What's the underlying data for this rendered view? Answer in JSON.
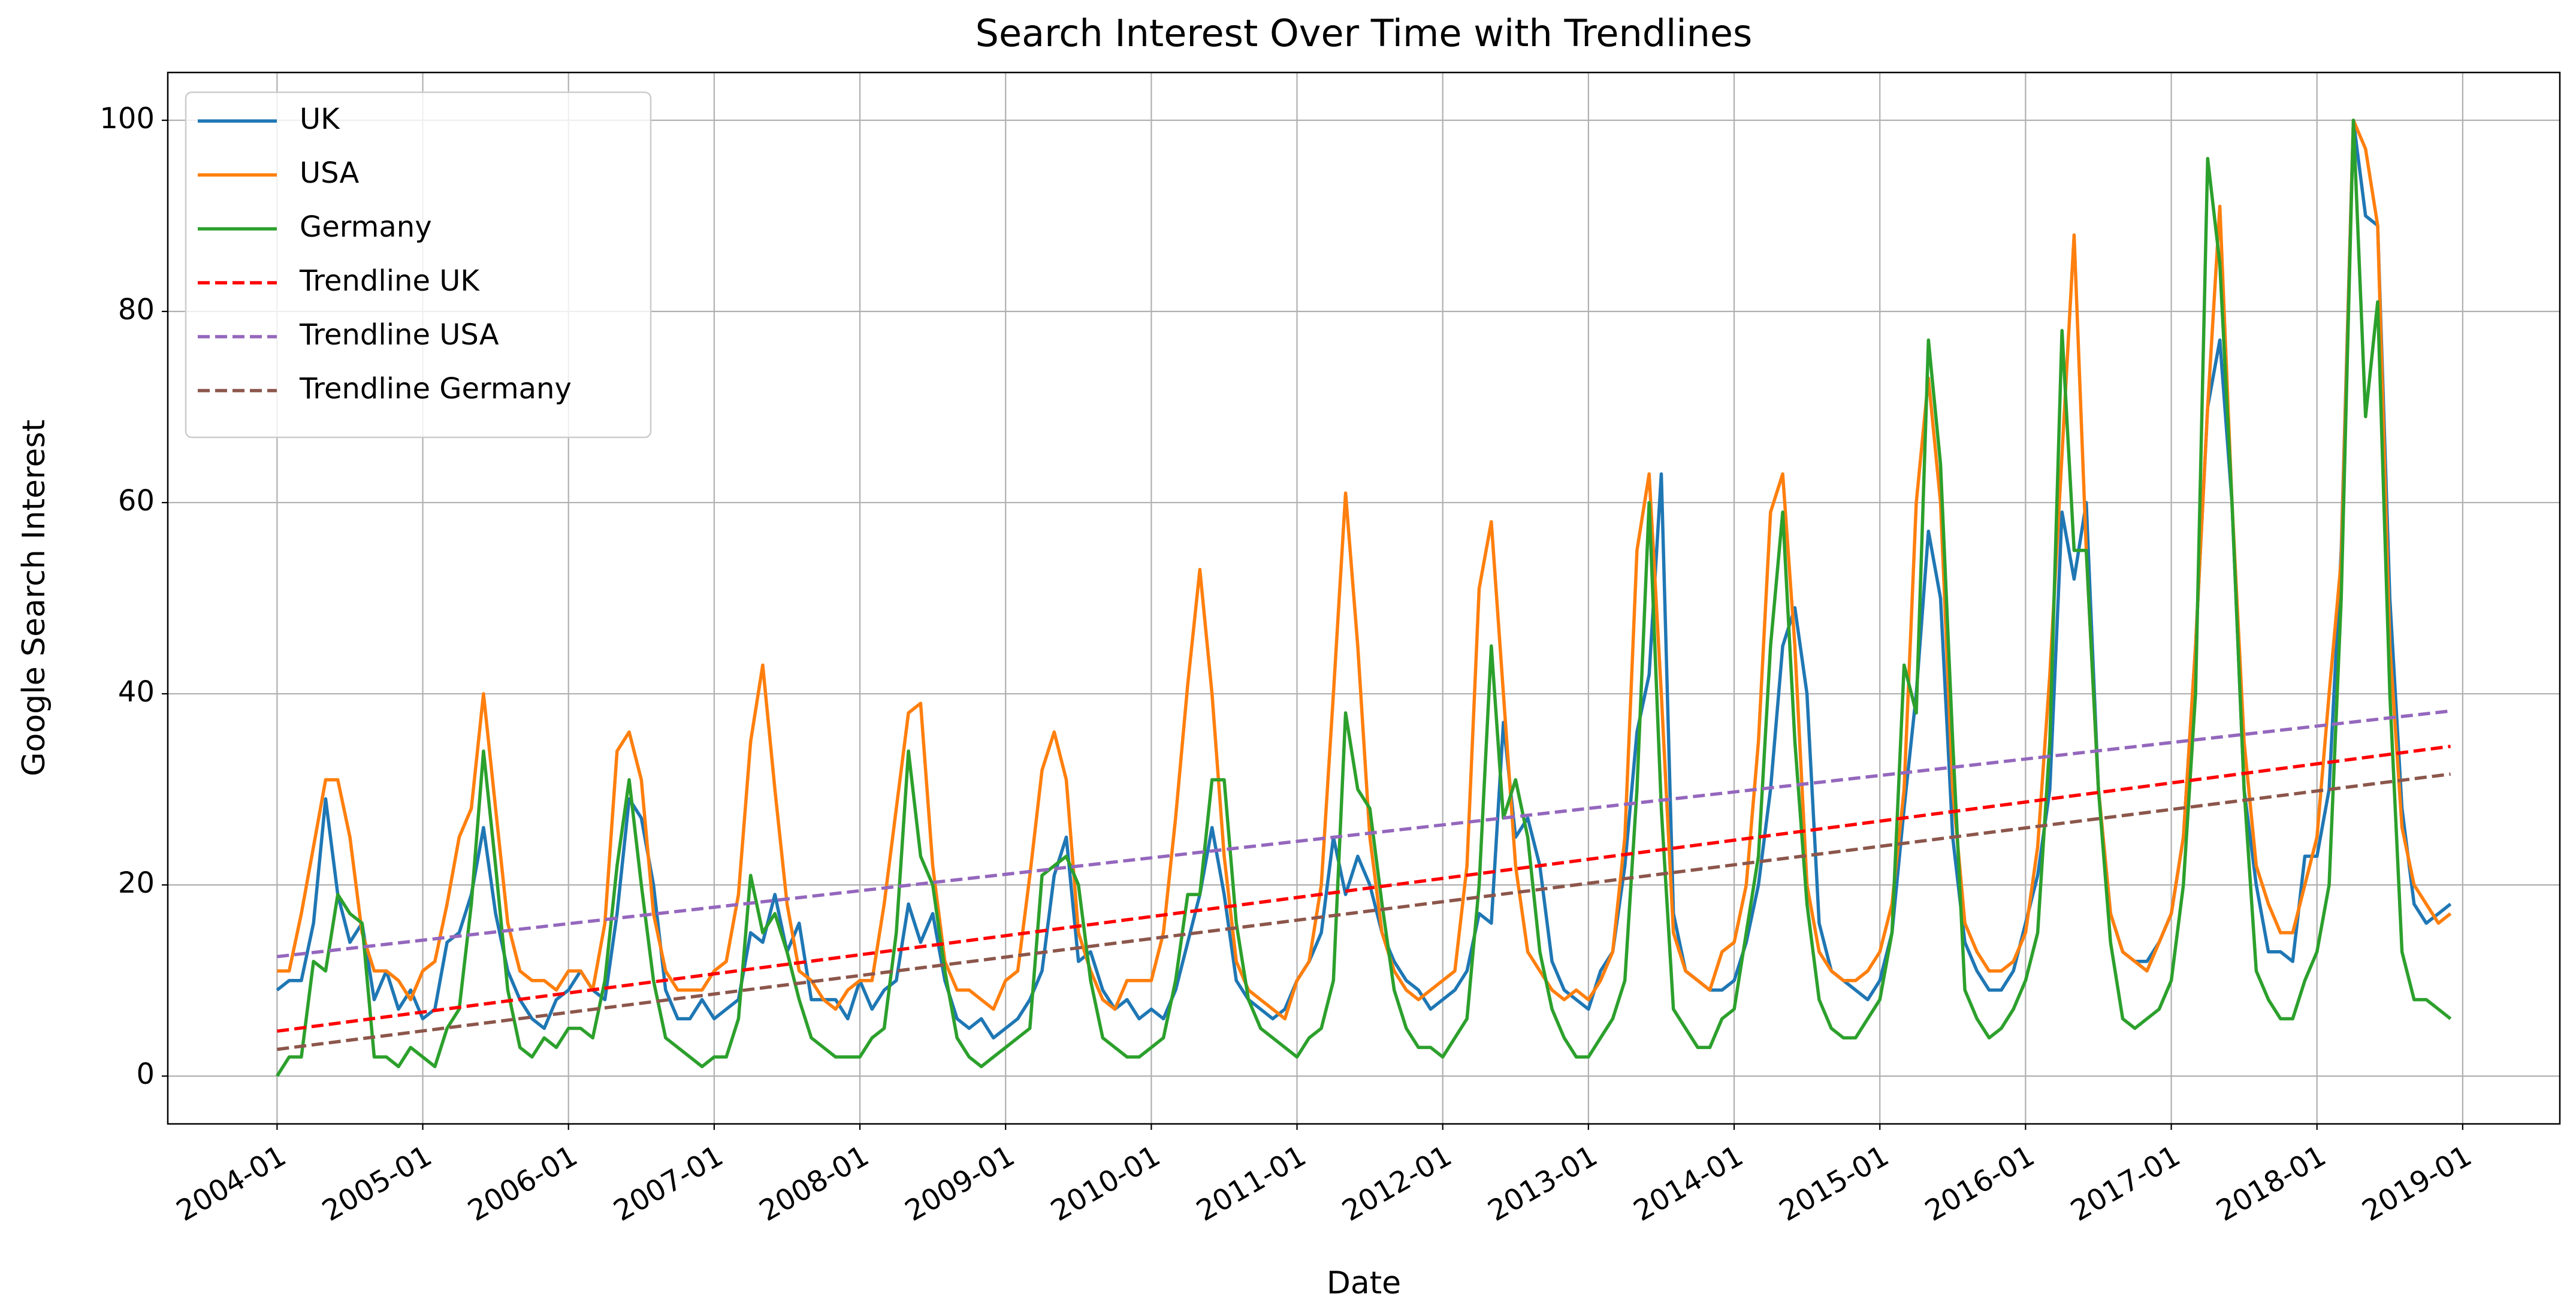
{
  "chart_data": {
    "type": "line",
    "title": "Search Interest Over Time with Trendlines",
    "x_label": "Date",
    "y_label": "Google Search Interest",
    "x": [
      "2004-01",
      "2004-02",
      "2004-03",
      "2004-04",
      "2004-05",
      "2004-06",
      "2004-07",
      "2004-08",
      "2004-09",
      "2004-10",
      "2004-11",
      "2004-12",
      "2005-01",
      "2005-02",
      "2005-03",
      "2005-04",
      "2005-05",
      "2005-06",
      "2005-07",
      "2005-08",
      "2005-09",
      "2005-10",
      "2005-11",
      "2005-12",
      "2006-01",
      "2006-02",
      "2006-03",
      "2006-04",
      "2006-05",
      "2006-06",
      "2006-07",
      "2006-08",
      "2006-09",
      "2006-10",
      "2006-11",
      "2006-12",
      "2007-01",
      "2007-02",
      "2007-03",
      "2007-04",
      "2007-05",
      "2007-06",
      "2007-07",
      "2007-08",
      "2007-09",
      "2007-10",
      "2007-11",
      "2007-12",
      "2008-01",
      "2008-02",
      "2008-03",
      "2008-04",
      "2008-05",
      "2008-06",
      "2008-07",
      "2008-08",
      "2008-09",
      "2008-10",
      "2008-11",
      "2008-12",
      "2009-01",
      "2009-02",
      "2009-03",
      "2009-04",
      "2009-05",
      "2009-06",
      "2009-07",
      "2009-08",
      "2009-09",
      "2009-10",
      "2009-11",
      "2009-12",
      "2010-01",
      "2010-02",
      "2010-03",
      "2010-04",
      "2010-05",
      "2010-06",
      "2010-07",
      "2010-08",
      "2010-09",
      "2010-10",
      "2010-11",
      "2010-12",
      "2011-01",
      "2011-02",
      "2011-03",
      "2011-04",
      "2011-05",
      "2011-06",
      "2011-07",
      "2011-08",
      "2011-09",
      "2011-10",
      "2011-11",
      "2011-12",
      "2012-01",
      "2012-02",
      "2012-03",
      "2012-04",
      "2012-05",
      "2012-06",
      "2012-07",
      "2012-08",
      "2012-09",
      "2012-10",
      "2012-11",
      "2012-12",
      "2013-01",
      "2013-02",
      "2013-03",
      "2013-04",
      "2013-05",
      "2013-06",
      "2013-07",
      "2013-08",
      "2013-09",
      "2013-10",
      "2013-11",
      "2013-12",
      "2014-01",
      "2014-02",
      "2014-03",
      "2014-04",
      "2014-05",
      "2014-06",
      "2014-07",
      "2014-08",
      "2014-09",
      "2014-10",
      "2014-11",
      "2014-12",
      "2015-01",
      "2015-02",
      "2015-03",
      "2015-04",
      "2015-05",
      "2015-06",
      "2015-07",
      "2015-08",
      "2015-09",
      "2015-10",
      "2015-11",
      "2015-12",
      "2016-01",
      "2016-02",
      "2016-03",
      "2016-04",
      "2016-05",
      "2016-06",
      "2016-07",
      "2016-08",
      "2016-09",
      "2016-10",
      "2016-11",
      "2016-12",
      "2017-01",
      "2017-02",
      "2017-03",
      "2017-04",
      "2017-05",
      "2017-06",
      "2017-07",
      "2017-08",
      "2017-09",
      "2017-10",
      "2017-11",
      "2017-12",
      "2018-01",
      "2018-02",
      "2018-03",
      "2018-04",
      "2018-05",
      "2018-06",
      "2018-07",
      "2018-08",
      "2018-09",
      "2018-10",
      "2018-11",
      "2018-12"
    ],
    "series": [
      {
        "name": "UK",
        "color": "#1f77b4",
        "linestyle": "solid",
        "values": [
          9,
          10,
          10,
          16,
          29,
          19,
          14,
          16,
          8,
          11,
          7,
          9,
          6,
          7,
          14,
          15,
          19,
          26,
          17,
          11,
          8,
          6,
          5,
          8,
          9,
          11,
          9,
          8,
          17,
          29,
          27,
          20,
          9,
          6,
          6,
          8,
          6,
          7,
          8,
          15,
          14,
          19,
          13,
          16,
          8,
          8,
          8,
          6,
          10,
          7,
          9,
          10,
          18,
          14,
          17,
          10,
          6,
          5,
          6,
          4,
          5,
          6,
          8,
          11,
          21,
          25,
          12,
          13,
          9,
          7,
          8,
          6,
          7,
          6,
          9,
          14,
          19,
          26,
          19,
          10,
          8,
          7,
          6,
          7,
          10,
          12,
          15,
          25,
          19,
          23,
          20,
          15,
          12,
          10,
          9,
          7,
          8,
          9,
          11,
          17,
          16,
          37,
          25,
          27,
          22,
          12,
          9,
          8,
          7,
          11,
          13,
          22,
          36,
          42,
          63,
          17,
          11,
          10,
          9,
          9,
          10,
          14,
          20,
          30,
          45,
          49,
          40,
          16,
          11,
          10,
          9,
          8,
          10,
          15,
          28,
          40,
          57,
          50,
          25,
          14,
          11,
          9,
          9,
          11,
          16,
          21,
          30,
          59,
          52,
          60,
          30,
          17,
          13,
          12,
          12,
          14,
          17,
          25,
          45,
          70,
          77,
          60,
          30,
          20,
          13,
          13,
          12,
          23,
          23,
          30,
          55,
          100,
          90,
          89,
          50,
          28,
          18,
          16,
          17,
          18
        ]
      },
      {
        "name": "USA",
        "color": "#ff7f0e",
        "linestyle": "solid",
        "values": [
          11,
          11,
          17,
          24,
          31,
          31,
          25,
          15,
          11,
          11,
          10,
          8,
          11,
          12,
          18,
          25,
          28,
          40,
          28,
          16,
          11,
          10,
          10,
          9,
          11,
          11,
          9,
          16,
          34,
          36,
          31,
          17,
          11,
          9,
          9,
          9,
          11,
          12,
          19,
          35,
          43,
          30,
          18,
          11,
          10,
          8,
          7,
          9,
          10,
          10,
          18,
          28,
          38,
          39,
          22,
          12,
          9,
          9,
          8,
          7,
          10,
          11,
          21,
          32,
          36,
          31,
          15,
          11,
          8,
          7,
          10,
          10,
          10,
          15,
          27,
          41,
          53,
          40,
          23,
          12,
          9,
          8,
          7,
          6,
          10,
          12,
          20,
          40,
          61,
          45,
          25,
          15,
          11,
          9,
          8,
          9,
          10,
          11,
          22,
          51,
          58,
          40,
          22,
          13,
          11,
          9,
          8,
          9,
          8,
          10,
          13,
          25,
          55,
          63,
          40,
          15,
          11,
          10,
          9,
          13,
          14,
          20,
          35,
          59,
          63,
          45,
          20,
          13,
          11,
          10,
          10,
          11,
          13,
          18,
          30,
          60,
          73,
          60,
          30,
          16,
          13,
          11,
          11,
          12,
          15,
          24,
          42,
          65,
          88,
          55,
          30,
          17,
          13,
          12,
          11,
          14,
          17,
          25,
          45,
          70,
          91,
          60,
          35,
          22,
          18,
          15,
          15,
          20,
          25,
          40,
          54,
          100,
          97,
          89,
          45,
          26,
          20,
          18,
          16,
          17
        ]
      },
      {
        "name": "Germany",
        "color": "#2ca02c",
        "linestyle": "solid",
        "values": [
          0,
          2,
          2,
          12,
          11,
          19,
          17,
          16,
          2,
          2,
          1,
          3,
          2,
          1,
          5,
          7,
          18,
          34,
          22,
          9,
          3,
          2,
          4,
          3,
          5,
          5,
          4,
          10,
          22,
          31,
          20,
          10,
          4,
          3,
          2,
          1,
          2,
          2,
          6,
          21,
          15,
          17,
          13,
          8,
          4,
          3,
          2,
          2,
          2,
          4,
          5,
          15,
          34,
          23,
          20,
          11,
          4,
          2,
          1,
          2,
          3,
          4,
          5,
          21,
          22,
          23,
          20,
          10,
          4,
          3,
          2,
          2,
          3,
          4,
          10,
          19,
          19,
          31,
          31,
          16,
          8,
          5,
          4,
          3,
          2,
          4,
          5,
          10,
          38,
          30,
          28,
          18,
          9,
          5,
          3,
          3,
          2,
          4,
          6,
          20,
          45,
          27,
          31,
          25,
          13,
          7,
          4,
          2,
          2,
          4,
          6,
          10,
          30,
          60,
          28,
          7,
          5,
          3,
          3,
          6,
          7,
          15,
          23,
          45,
          59,
          35,
          18,
          8,
          5,
          4,
          4,
          6,
          8,
          15,
          43,
          38,
          77,
          64,
          35,
          9,
          6,
          4,
          5,
          7,
          10,
          15,
          35,
          78,
          55,
          55,
          30,
          14,
          6,
          5,
          6,
          7,
          10,
          20,
          40,
          96,
          85,
          60,
          30,
          11,
          8,
          6,
          6,
          10,
          13,
          20,
          50,
          100,
          69,
          81,
          40,
          13,
          8,
          8,
          7,
          6
        ]
      },
      {
        "name": "Trendline UK",
        "color": "#ff0000",
        "linestyle": "dashed",
        "x": [
          "2004-01",
          "2018-12"
        ],
        "values": [
          4.7,
          34.5
        ]
      },
      {
        "name": "Trendline USA",
        "color": "#9467bd",
        "linestyle": "dashed",
        "x": [
          "2004-01",
          "2018-12"
        ],
        "values": [
          12.5,
          38.2
        ]
      },
      {
        "name": "Trendline Germany",
        "color": "#8c564b",
        "linestyle": "dashed",
        "x": [
          "2004-01",
          "2018-12"
        ],
        "values": [
          2.8,
          31.6
        ]
      }
    ],
    "xlim": [
      "2003-04",
      "2019-09"
    ],
    "xticks": [
      "2004-01",
      "2005-01",
      "2006-01",
      "2007-01",
      "2008-01",
      "2009-01",
      "2010-01",
      "2011-01",
      "2012-01",
      "2013-01",
      "2014-01",
      "2015-01",
      "2016-01",
      "2017-01",
      "2018-01",
      "2019-01"
    ],
    "ylim": [
      -5,
      105
    ],
    "yticks": [
      0,
      20,
      40,
      60,
      80,
      100
    ],
    "grid": true,
    "legend": "upper left"
  }
}
